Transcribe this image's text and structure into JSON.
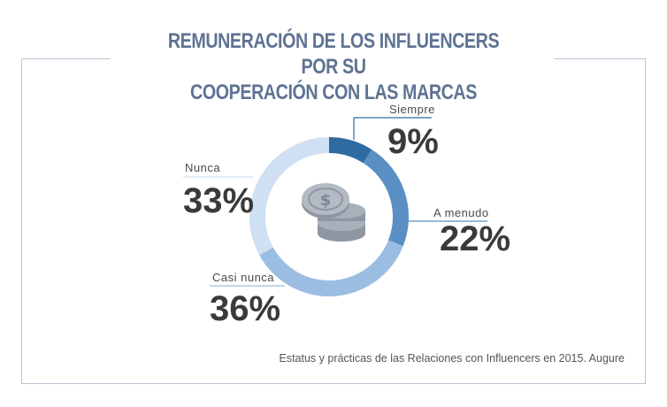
{
  "title": {
    "line1": "REMUNERACIÓN DE LOS INFLUENCERS POR SU",
    "line2": "COOPERACIÓN CON LAS MARCAS"
  },
  "source": "Estatus y prácticas de las Relaciones con Influencers en 2015. Augure",
  "center_icon": "coins-icon",
  "chart_data": {
    "type": "pie",
    "title": "REMUNERACIÓN DE LOS INFLUENCERS POR SU COOPERACIÓN CON LAS MARCAS",
    "donut": true,
    "legend": "none",
    "slices": [
      {
        "label": "Siempre",
        "value": 9,
        "display": "9%",
        "color": "#2f6aa1"
      },
      {
        "label": "A menudo",
        "value": 22,
        "display": "22%",
        "color": "#5a8fc3"
      },
      {
        "label": "Casi nunca",
        "value": 36,
        "display": "36%",
        "color": "#9bbde2"
      },
      {
        "label": "Nunca",
        "value": 33,
        "display": "33%",
        "color": "#cfe0f2"
      }
    ]
  }
}
